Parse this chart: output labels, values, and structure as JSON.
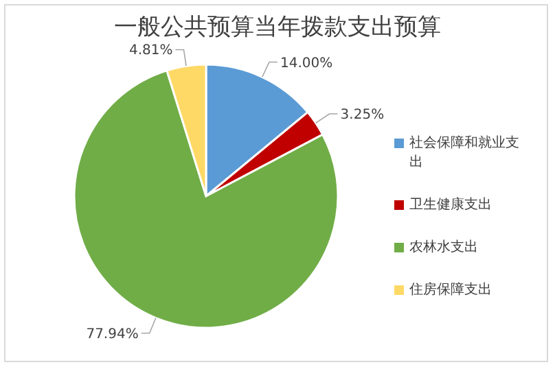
{
  "chart_data": {
    "type": "pie",
    "title": "一般公共预算当年拨款支出预算",
    "categories": [
      "社会保障和就业支出",
      "卫生健康支出",
      "农林水支出",
      "住房保障支出"
    ],
    "values": [
      14.0,
      3.25,
      77.94,
      4.81
    ],
    "value_labels": [
      "14.00%",
      "3.25%",
      "77.94%",
      "4.81%"
    ],
    "colors": [
      "#5b9bd5",
      "#c00000",
      "#70ad47",
      "#ffd966"
    ],
    "legend": "right"
  }
}
